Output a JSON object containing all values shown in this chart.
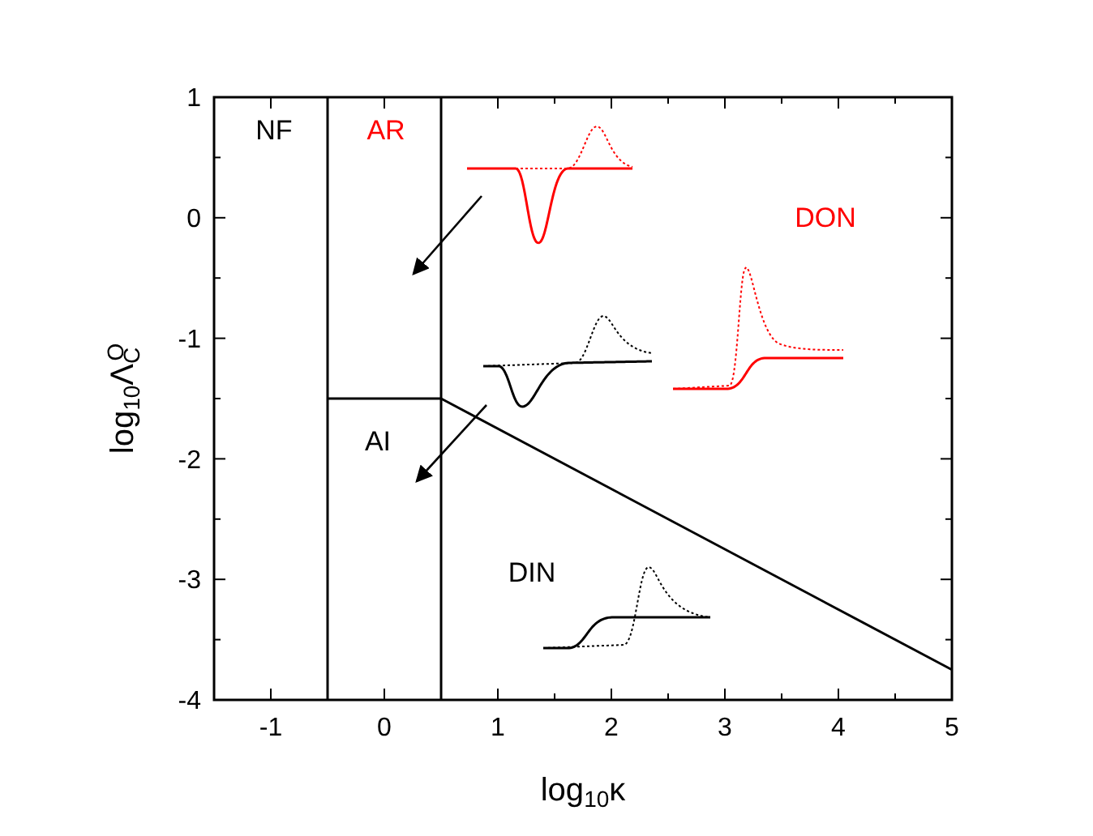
{
  "chart_data": {
    "type": "line",
    "xlabel": "log$_{10}$κ",
    "ylabel": "log$_{10}$Λ$_{C}$$^{O}$",
    "xlim": [
      -1.5,
      5
    ],
    "ylim": [
      -4,
      1
    ],
    "xticks": [
      {
        "value": -1.5,
        "label": null
      },
      -1,
      {
        "value": -0.5,
        "label": null
      },
      0,
      {
        "value": 0.5,
        "label": null
      },
      1,
      {
        "value": 1.5,
        "label": null
      },
      2,
      {
        "value": 2.5,
        "label": null
      },
      3,
      {
        "value": 3.5,
        "label": null
      },
      4,
      {
        "value": 4.5,
        "label": null
      },
      5
    ],
    "yticks": [
      -4,
      {
        "value": -3.5,
        "label": null
      },
      -3,
      {
        "value": -2.5,
        "label": null
      },
      -2,
      {
        "value": -1.5,
        "label": null
      },
      -1,
      {
        "value": -0.5,
        "label": null
      },
      0,
      {
        "value": 0.5,
        "label": null
      },
      1
    ],
    "series": [
      {
        "color": "#000000",
        "x": [
          -0.5,
          -0.5
        ],
        "values": [
          -4,
          1
        ]
      },
      {
        "color": "#000000",
        "x": [
          0.5,
          0.5
        ],
        "values": [
          -4,
          1
        ]
      },
      {
        "color": "#000000",
        "x": [
          -0.5,
          0.5
        ],
        "values": [
          -1.5,
          -1.5
        ]
      },
      {
        "color": "#000000",
        "x": [
          0.5,
          5
        ],
        "values": [
          -1.5,
          -3.75
        ]
      }
    ],
    "annotations": [
      "NF",
      "AR",
      "DON",
      "AI",
      "DIN"
    ],
    "grid": false,
    "marker": "none",
    "line_style": "solid"
  }
}
